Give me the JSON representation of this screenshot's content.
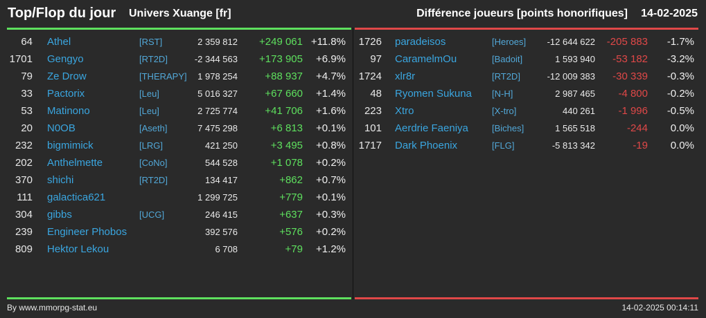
{
  "header": {
    "title": "Top/Flop du jour",
    "subtitle": "Univers Xuange [fr]",
    "right_title": "Différence joueurs [points honorifiques]",
    "date": "14-02-2025"
  },
  "colors": {
    "top_accent": "#5ee05e",
    "flop_accent": "#e04848",
    "link": "#3aa6e0",
    "background": "#2a2a2a"
  },
  "top": [
    {
      "rank": "64",
      "name": "Athel",
      "alliance": "[RST]",
      "points": "2 359 812",
      "diff": "+249 061",
      "pct": "+11.8%"
    },
    {
      "rank": "1701",
      "name": "Gengyo",
      "alliance": "[RT2D]",
      "points": "-2 344 563",
      "diff": "+173 905",
      "pct": "+6.9%"
    },
    {
      "rank": "79",
      "name": "Ze Drow",
      "alliance": "[THERAPY]",
      "points": "1 978 254",
      "diff": "+88 937",
      "pct": "+4.7%"
    },
    {
      "rank": "33",
      "name": "Pactorix",
      "alliance": "[Leu]",
      "points": "5 016 327",
      "diff": "+67 660",
      "pct": "+1.4%"
    },
    {
      "rank": "53",
      "name": "Matinono",
      "alliance": "[Leu]",
      "points": "2 725 774",
      "diff": "+41 706",
      "pct": "+1.6%"
    },
    {
      "rank": "20",
      "name": "N0OB",
      "alliance": "[Aseth]",
      "points": "7 475 298",
      "diff": "+6 813",
      "pct": "+0.1%"
    },
    {
      "rank": "232",
      "name": "bigmimick",
      "alliance": "[LRG]",
      "points": "421 250",
      "diff": "+3 495",
      "pct": "+0.8%"
    },
    {
      "rank": "202",
      "name": "Anthelmette",
      "alliance": "[CoNo]",
      "points": "544 528",
      "diff": "+1 078",
      "pct": "+0.2%"
    },
    {
      "rank": "370",
      "name": "shichi",
      "alliance": "[RT2D]",
      "points": "134 417",
      "diff": "+862",
      "pct": "+0.7%"
    },
    {
      "rank": "111",
      "name": "galactica621",
      "alliance": "",
      "points": "1 299 725",
      "diff": "+779",
      "pct": "+0.1%"
    },
    {
      "rank": "304",
      "name": "gibbs",
      "alliance": "[UCG]",
      "points": "246 415",
      "diff": "+637",
      "pct": "+0.3%"
    },
    {
      "rank": "239",
      "name": "Engineer Phobos",
      "alliance": "",
      "points": "392 576",
      "diff": "+576",
      "pct": "+0.2%"
    },
    {
      "rank": "809",
      "name": "Hektor Lekou",
      "alliance": "",
      "points": "6 708",
      "diff": "+79",
      "pct": "+1.2%"
    }
  ],
  "flop": [
    {
      "rank": "1726",
      "name": "paradeisos",
      "alliance": "[Heroes]",
      "points": "-12 644 622",
      "diff": "-205 883",
      "pct": "-1.7%"
    },
    {
      "rank": "97",
      "name": "CaramelmOu",
      "alliance": "[Badoit]",
      "points": "1 593 940",
      "diff": "-53 182",
      "pct": "-3.2%"
    },
    {
      "rank": "1724",
      "name": "xlr8r",
      "alliance": "[RT2D]",
      "points": "-12 009 383",
      "diff": "-30 339",
      "pct": "-0.3%"
    },
    {
      "rank": "48",
      "name": "Ryomen Sukuna",
      "alliance": "[N-H]",
      "points": "2 987 465",
      "diff": "-4 800",
      "pct": "-0.2%"
    },
    {
      "rank": "223",
      "name": "Xtro",
      "alliance": "[X-tro]",
      "points": "440 261",
      "diff": "-1 996",
      "pct": "-0.5%"
    },
    {
      "rank": "101",
      "name": "Aerdrie Faeniya",
      "alliance": "[Biches]",
      "points": "1 565 518",
      "diff": "-244",
      "pct": "0.0%"
    },
    {
      "rank": "1717",
      "name": "Dark Phoenix",
      "alliance": "[FLG]",
      "points": "-5 813 342",
      "diff": "-19",
      "pct": "0.0%"
    }
  ],
  "footer": {
    "credit": "By www.mmorpg-stat.eu",
    "timestamp": "14-02-2025 00:14:11"
  }
}
